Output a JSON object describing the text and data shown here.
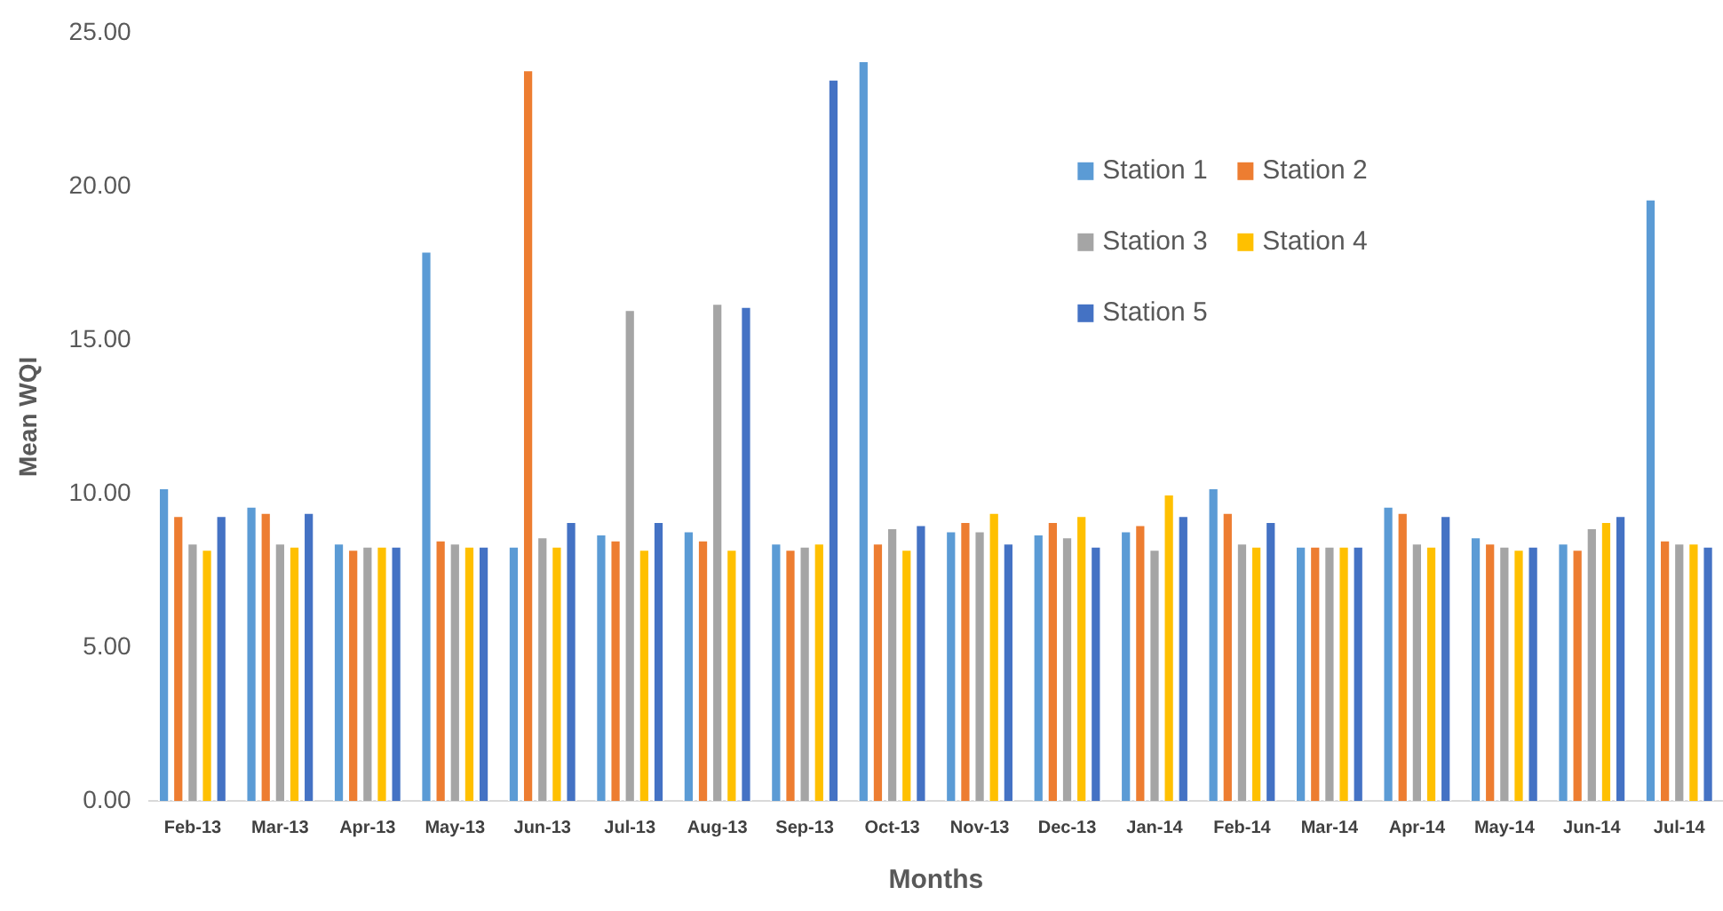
{
  "chart_data": {
    "type": "bar",
    "xlabel": "Months",
    "ylabel": "Mean WQI",
    "categories": [
      "Feb-13",
      "Mar-13",
      "Apr-13",
      "May-13",
      "Jun-13",
      "Jul-13",
      "Aug-13",
      "Sep-13",
      "Oct-13",
      "Nov-13",
      "Dec-13",
      "Jan-14",
      "Feb-14",
      "Mar-14",
      "Apr-14",
      "May-14",
      "Jun-14",
      "Jul-14"
    ],
    "series": [
      {
        "name": "Station 1",
        "color": "#5b9bd5",
        "values": [
          10.2,
          9.6,
          8.4,
          17.9,
          8.3,
          8.7,
          8.8,
          8.4,
          24.1,
          8.8,
          8.7,
          8.8,
          10.2,
          8.3,
          9.6,
          8.6,
          8.4,
          19.6
        ]
      },
      {
        "name": "Station 2",
        "color": "#ed7d31",
        "values": [
          9.3,
          9.4,
          8.2,
          8.5,
          23.8,
          8.5,
          8.5,
          8.2,
          8.4,
          9.1,
          9.1,
          9.0,
          9.4,
          8.3,
          9.4,
          8.4,
          8.2,
          8.5
        ]
      },
      {
        "name": "Station 3",
        "color": "#a5a5a5",
        "values": [
          8.4,
          8.4,
          8.3,
          8.4,
          8.6,
          16.0,
          16.2,
          8.3,
          8.9,
          8.8,
          8.6,
          8.2,
          8.4,
          8.3,
          8.4,
          8.3,
          8.9,
          8.4
        ]
      },
      {
        "name": "Station 4",
        "color": "#ffc000",
        "values": [
          8.2,
          8.3,
          8.3,
          8.3,
          8.3,
          8.2,
          8.2,
          8.4,
          8.2,
          9.4,
          9.3,
          10.0,
          8.3,
          8.3,
          8.3,
          8.2,
          9.1,
          8.4
        ]
      },
      {
        "name": "Station 5",
        "color": "#4472c4",
        "values": [
          9.3,
          9.4,
          8.3,
          8.3,
          9.1,
          9.1,
          16.1,
          23.5,
          9.0,
          8.4,
          8.3,
          9.3,
          9.1,
          8.3,
          9.3,
          8.3,
          9.3,
          8.3
        ]
      }
    ],
    "ylim": [
      0,
      25
    ],
    "yticks": [
      {
        "value": 0,
        "label": "0.00"
      },
      {
        "value": 5,
        "label": "5.00"
      },
      {
        "value": 10,
        "label": "10.00"
      },
      {
        "value": 15,
        "label": "15.00"
      },
      {
        "value": 20,
        "label": "20.00"
      },
      {
        "value": 25,
        "label": "25.00"
      }
    ],
    "grid": false,
    "legend": "top right"
  }
}
